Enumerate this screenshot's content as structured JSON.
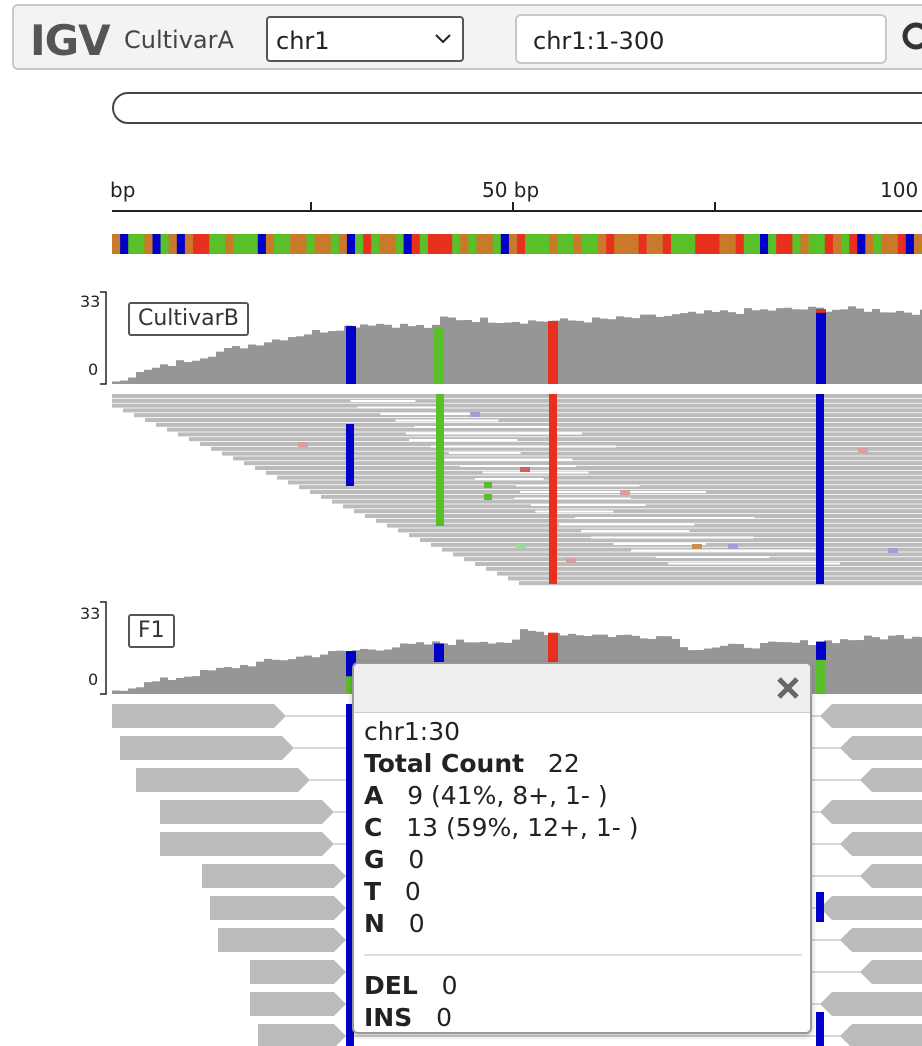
{
  "navbar": {
    "logo": "IGV",
    "genome": "CultivarA",
    "chromosome": "chr1",
    "locus": "chr1:1-300"
  },
  "ruler": {
    "labels": [
      {
        "text": "bp"
      },
      {
        "text": "50 bp"
      },
      {
        "text": "100"
      }
    ]
  },
  "tracks": [
    {
      "name": "CultivarB",
      "scale_max": "33",
      "scale_min": "0"
    },
    {
      "name": "F1",
      "scale_max": "33",
      "scale_min": "0"
    }
  ],
  "popup": {
    "locus": "chr1:30",
    "total_label": "Total Count",
    "total_value": "22",
    "bases": [
      {
        "base": "A",
        "value": "9 (41%, 8+, 1- )"
      },
      {
        "base": "C",
        "value": "13 (59%, 12+, 1- )"
      },
      {
        "base": "G",
        "value": "0"
      },
      {
        "base": "T",
        "value": "0"
      },
      {
        "base": "N",
        "value": "0"
      }
    ],
    "del_label": "DEL",
    "del_value": "0",
    "ins_label": "INS",
    "ins_value": "0"
  },
  "colors": {
    "A": "#5ac02a",
    "C": "#0000c8",
    "G": "#c87a2a",
    "T": "#e8301e",
    "coverage": "#969696",
    "read": "#bbbbbb"
  },
  "icons": [
    "chevron-down-icon",
    "search-icon",
    "close-icon"
  ]
}
